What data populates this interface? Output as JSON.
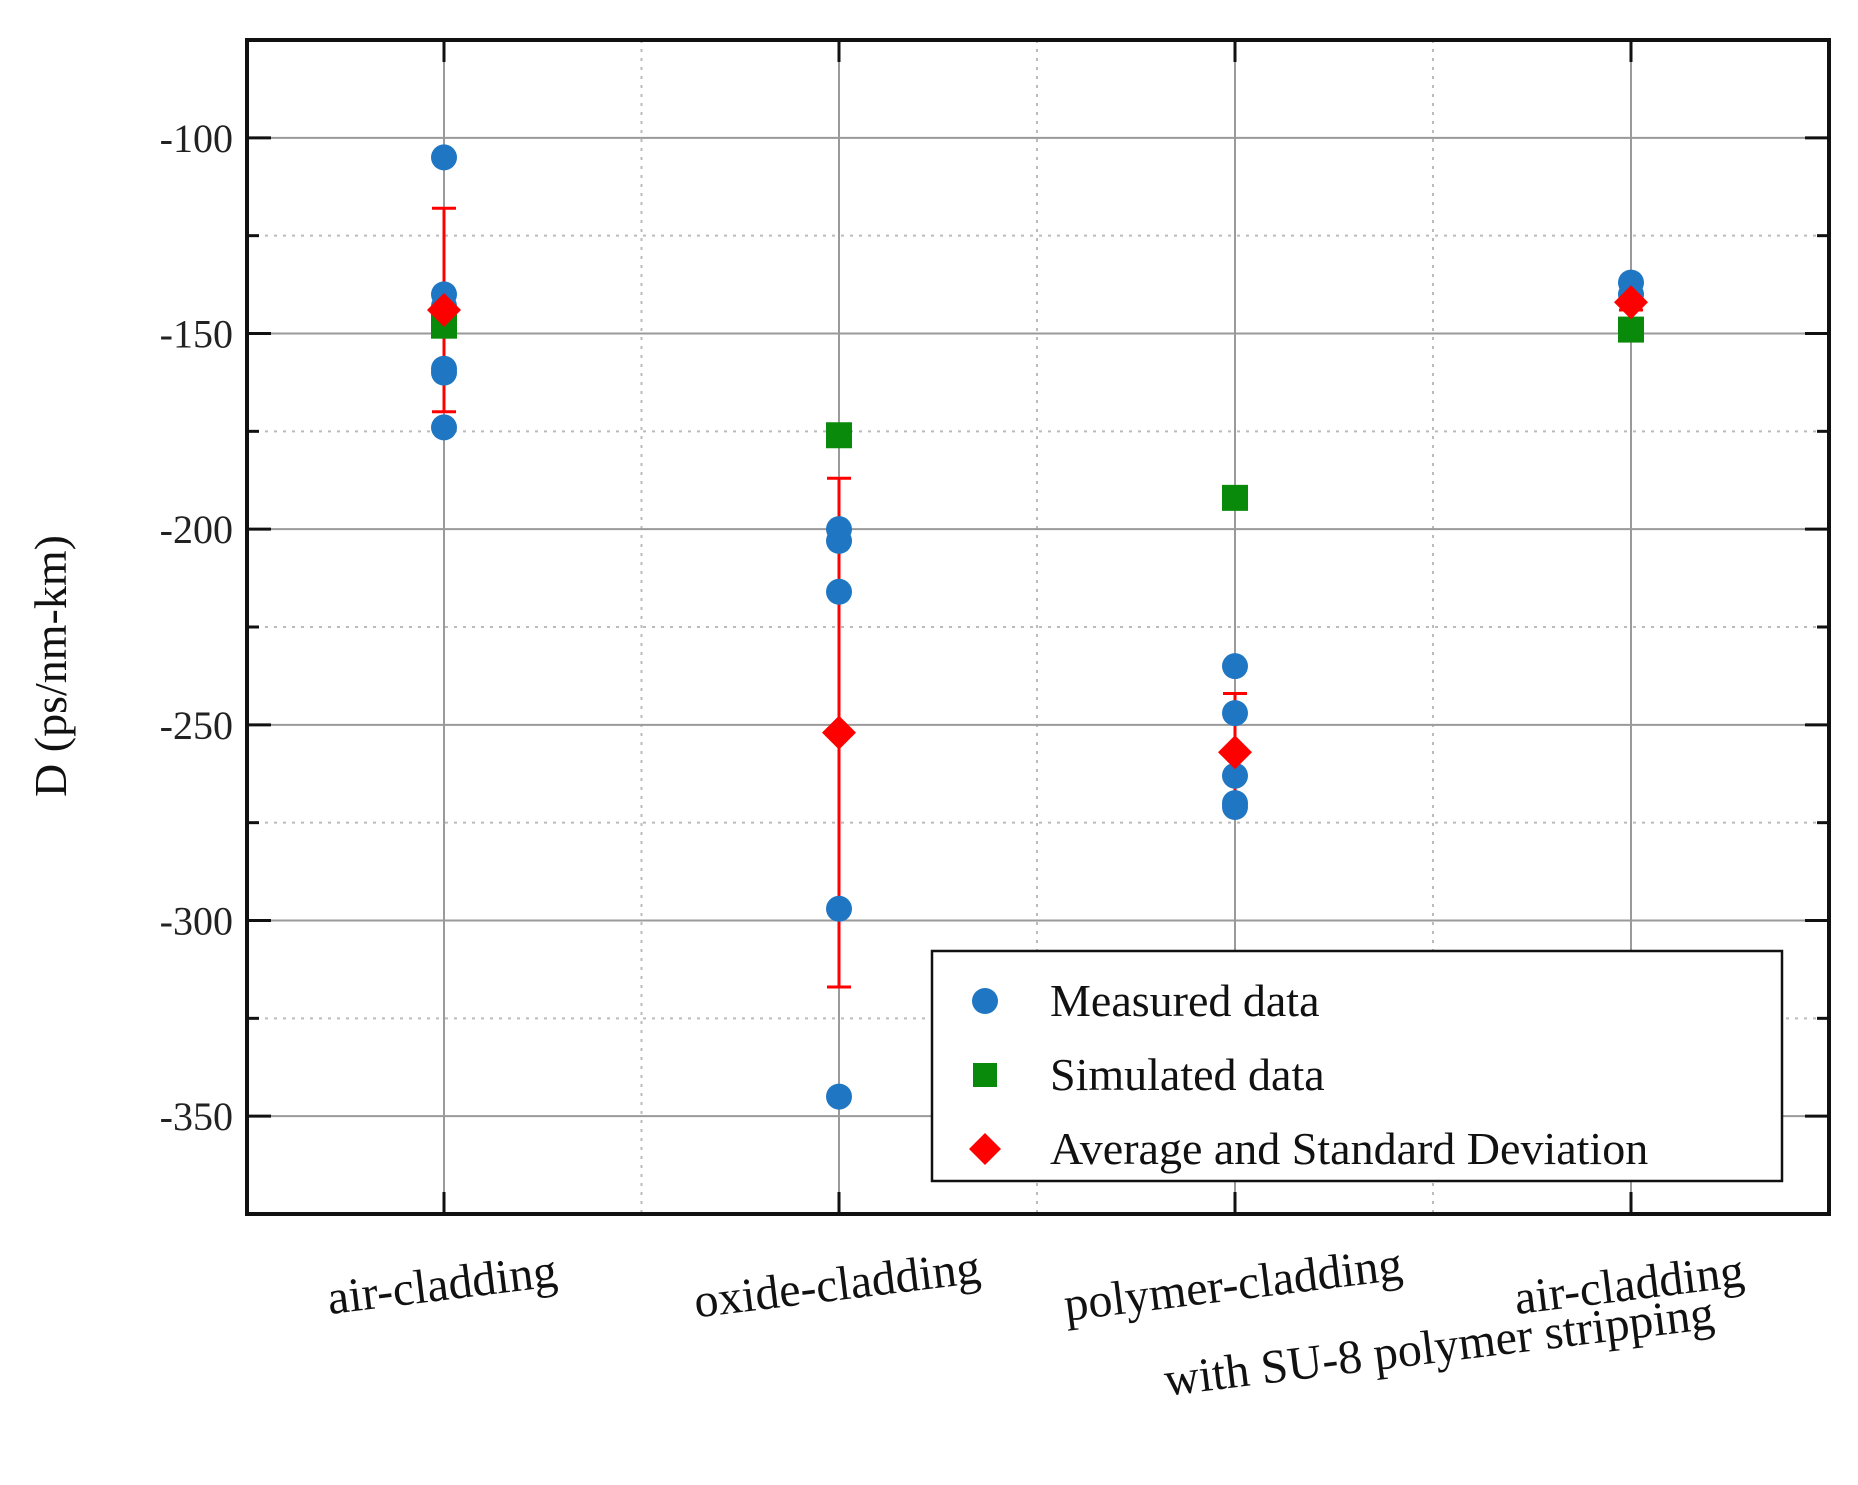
{
  "chart_data": {
    "type": "scatter",
    "title": "",
    "xlabel": "",
    "ylabel": "D (ps/nm-km)",
    "ylim": [
      -375,
      -75
    ],
    "yticks": [
      -100,
      -150,
      -200,
      -250,
      -300,
      -350
    ],
    "grid": true,
    "categories": [
      {
        "id": "cat1",
        "lines": [
          "air-cladding"
        ]
      },
      {
        "id": "cat2",
        "lines": [
          "oxide-cladding"
        ]
      },
      {
        "id": "cat3",
        "lines": [
          "polymer-cladding"
        ]
      },
      {
        "id": "cat4",
        "lines": [
          "air-cladding",
          "with SU-8 polymer stripping"
        ]
      }
    ],
    "series": [
      {
        "name": "Measured data",
        "marker": "circle",
        "color": "#1f77c4",
        "points": [
          [
            0,
            -105
          ],
          [
            0,
            -140
          ],
          [
            0,
            -143
          ],
          [
            0,
            -159
          ],
          [
            0,
            -160
          ],
          [
            0,
            -174
          ],
          [
            1,
            -200
          ],
          [
            1,
            -203
          ],
          [
            1,
            -216
          ],
          [
            1,
            -297
          ],
          [
            1,
            -345
          ],
          [
            2,
            -235
          ],
          [
            2,
            -247
          ],
          [
            2,
            -263
          ],
          [
            2,
            -270
          ],
          [
            2,
            -271
          ],
          [
            3,
            -137
          ],
          [
            3,
            -140
          ]
        ]
      },
      {
        "name": "Simulated data",
        "marker": "square",
        "color": "#0a8a0a",
        "points": [
          [
            0,
            -148
          ],
          [
            1,
            -176
          ],
          [
            2,
            -192
          ],
          [
            3,
            -149
          ]
        ]
      },
      {
        "name": "Average and Standard Deviation",
        "marker": "diamond",
        "color": "#ff0000",
        "points": [
          {
            "x": 0,
            "mean": -144,
            "err_low": -170,
            "err_high": -118
          },
          {
            "x": 1,
            "mean": -252,
            "err_low": -317,
            "err_high": -187
          },
          {
            "x": 2,
            "mean": -257,
            "err_low": -272,
            "err_high": -242
          },
          {
            "x": 3,
            "mean": -142,
            "err_low": -144,
            "err_high": -140
          }
        ]
      }
    ],
    "legend": {
      "position": "bottom-right",
      "entries": [
        {
          "label": "Measured data",
          "marker": "circle",
          "color": "#1f77c4"
        },
        {
          "label": "Simulated data",
          "marker": "square",
          "color": "#0a8a0a"
        },
        {
          "label": "Average and Standard Deviation",
          "marker": "diamond",
          "color": "#ff0000"
        }
      ]
    }
  }
}
